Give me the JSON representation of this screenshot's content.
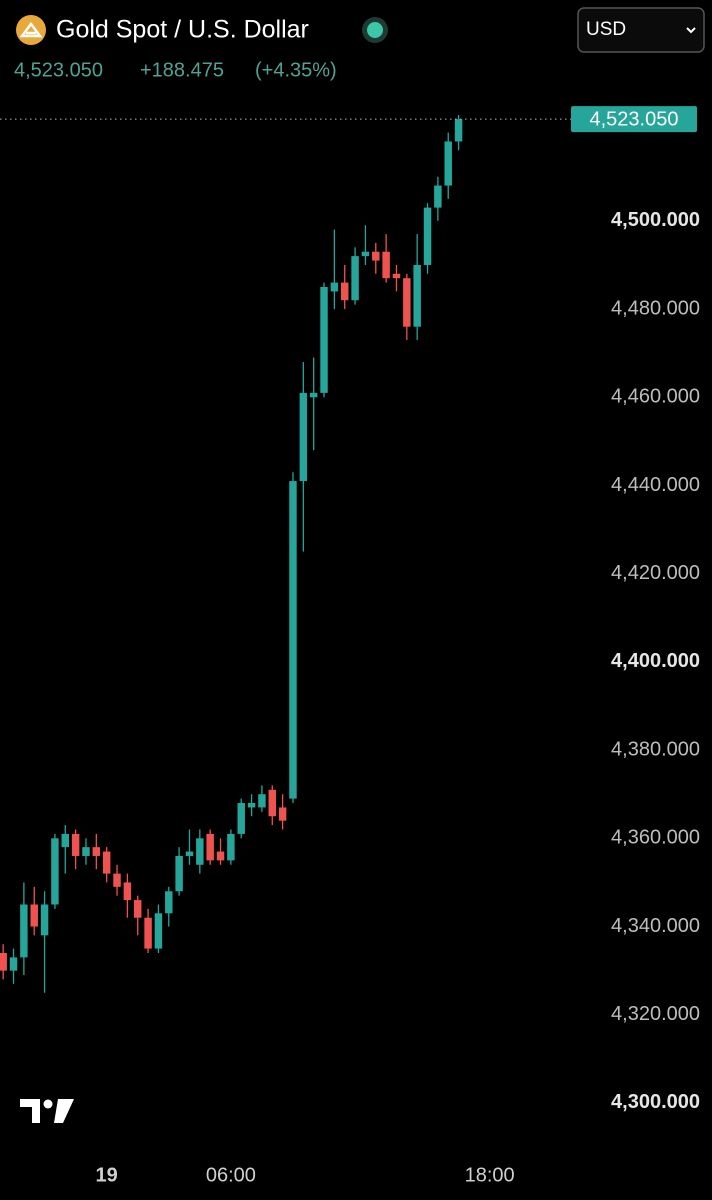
{
  "header": {
    "title": "Gold Spot / U.S. Dollar",
    "last_price": "4,523.050",
    "change": "+188.475",
    "change_percent": "(+4.35%)",
    "currency": "USD"
  },
  "chart_data": {
    "type": "candlestick",
    "categories": [
      null,
      null,
      null,
      null,
      null,
      null,
      null,
      null,
      null,
      null,
      "19",
      null,
      null,
      null,
      null,
      null,
      null,
      null,
      null,
      null,
      null,
      null,
      "06:00",
      null,
      null,
      null,
      null,
      null,
      null,
      null,
      null,
      null,
      null,
      null,
      null,
      null,
      null,
      null,
      null,
      null,
      null,
      null,
      null,
      null,
      null,
      null,
      null,
      "18:00"
    ],
    "open": [
      4334,
      4330,
      4333,
      4345,
      4338,
      4345,
      4358,
      4361,
      4356,
      4358,
      4357,
      4352,
      4350,
      4346,
      4342,
      4335,
      4343,
      4348,
      4356,
      4354,
      4361,
      4357,
      4355,
      4361,
      4367,
      4367,
      4371,
      4367,
      4369,
      4441,
      4460,
      4461,
      4484,
      4486,
      4482,
      4492,
      4493,
      4493,
      4488,
      4487,
      4476,
      4490,
      4503,
      4508,
      4518,
      null,
      null,
      null
    ],
    "high": [
      4336,
      4335,
      4350,
      4349,
      4348,
      4361,
      4363,
      4362,
      4360,
      4361,
      4358,
      4354,
      4352,
      4347,
      4344,
      4345,
      4349,
      4358,
      4362,
      4362,
      4362,
      4360,
      4362,
      4369,
      4370,
      4372,
      4372,
      4370,
      4443,
      4468,
      4469,
      4486,
      4498,
      4490,
      4494,
      4499,
      4495,
      4497,
      4490,
      4488,
      4497,
      4504,
      4510,
      4520,
      4524,
      null,
      null,
      null
    ],
    "low": [
      4328,
      4327,
      4329,
      4338,
      4325,
      4344,
      4352,
      4353,
      4354,
      4353,
      4350,
      4347,
      4342,
      4338,
      4334,
      4334,
      4340,
      4347,
      4354,
      4352,
      4354,
      4354,
      4354,
      4360,
      4365,
      4366,
      4363,
      4362,
      4368,
      4425,
      4448,
      4460,
      4480,
      4480,
      4481,
      4490,
      4488,
      4486,
      4484,
      4473,
      4473,
      4488,
      4500,
      4505,
      4516,
      null,
      null,
      null
    ],
    "close": [
      4330,
      4333,
      4345,
      4340,
      4345,
      4360,
      4361,
      4356,
      4358,
      4356,
      4352,
      4349,
      4346,
      4342,
      4335,
      4343,
      4348,
      4356,
      4357,
      4360,
      4355,
      4355,
      4361,
      4368,
      4368,
      4370,
      4365,
      4364,
      4441,
      4461,
      4461,
      4485,
      4486,
      4482,
      4492,
      4493,
      4491,
      4487,
      4487,
      4476,
      4490,
      4503,
      4508,
      4518,
      4523.05,
      null,
      null,
      null
    ],
    "up_color": "#26a69a",
    "down_color": "#ef5350",
    "ylim": [
      4291.6,
      4527.4
    ],
    "yticks": [
      {
        "value": 4300,
        "label": "4,300.000"
      },
      {
        "value": 4320,
        "label": "4,320.000"
      },
      {
        "value": 4340,
        "label": "4,340.000"
      },
      {
        "value": 4360,
        "label": "4,360.000"
      },
      {
        "value": 4380,
        "label": "4,380.000"
      },
      {
        "value": 4400,
        "label": "4,400.000"
      },
      {
        "value": 4420,
        "label": "4,420.000"
      },
      {
        "value": 4440,
        "label": "4,440.000"
      },
      {
        "value": 4460,
        "label": "4,460.000"
      },
      {
        "value": 4480,
        "label": "4,480.000"
      },
      {
        "value": 4500,
        "label": "4,500.000"
      }
    ],
    "grid": false
  }
}
